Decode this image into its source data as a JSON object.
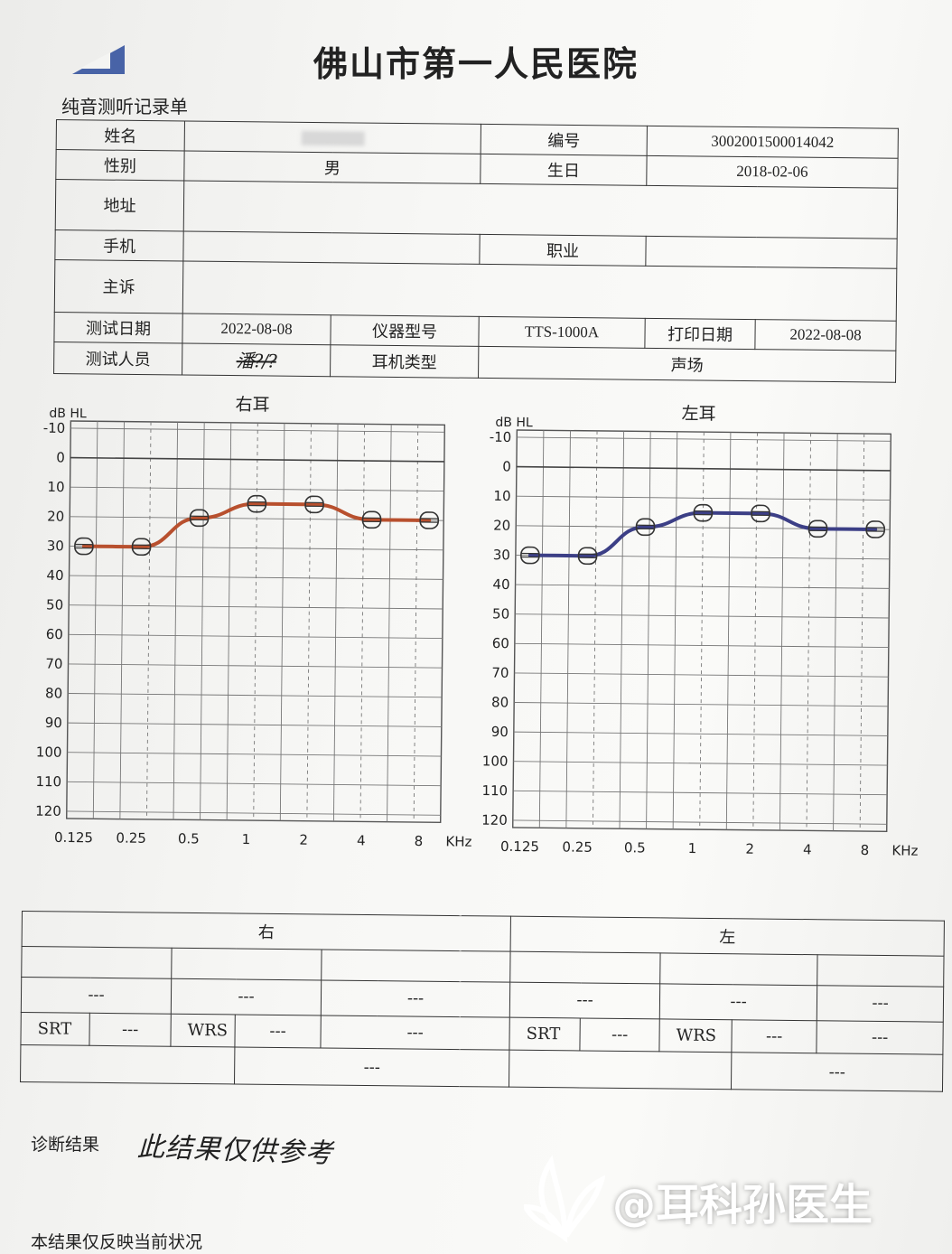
{
  "header": {
    "hospital_name": "佛山市第一人民医院",
    "form_title": "纯音测听记录单"
  },
  "patient": {
    "name_label": "姓名",
    "name_value": "",
    "id_label": "编号",
    "id_value": "3002001500014042",
    "sex_label": "性别",
    "sex_value": "男",
    "birth_label": "生日",
    "birth_value": "2018-02-06",
    "address_label": "地址",
    "address_value": "",
    "phone_label": "手机",
    "phone_value": "",
    "job_label": "职业",
    "job_value": "",
    "complaint_label": "主诉",
    "complaint_value": ""
  },
  "test": {
    "date_label": "测试日期",
    "date_value": "2022-08-08",
    "device_label": "仪器型号",
    "device_value": "TTS-1000A",
    "print_label": "打印日期",
    "print_value": "2022-08-08",
    "tester_label": "测试人员",
    "tester_value": "潘?/?",
    "earphone_label": "耳机类型",
    "earphone_value": "声场"
  },
  "chart_data": [
    {
      "type": "line",
      "title": "右耳",
      "ylabel": "dB HL",
      "xlabel": "KHz",
      "x": [
        "0.125",
        "0.25",
        "0.5",
        "1",
        "2",
        "4",
        "8"
      ],
      "y_ticks": [
        -10,
        0,
        10,
        20,
        30,
        40,
        50,
        60,
        70,
        80,
        90,
        100,
        110,
        120
      ],
      "ylim": [
        -10,
        120
      ],
      "y_inverted": true,
      "grid": true,
      "series": [
        {
          "values": [
            30,
            30,
            20,
            15,
            15,
            20,
            20
          ]
        }
      ],
      "color": "#b8502e"
    },
    {
      "type": "line",
      "title": "左耳",
      "ylabel": "dB HL",
      "xlabel": "KHz",
      "x": [
        "0.125",
        "0.25",
        "0.5",
        "1",
        "2",
        "4",
        "8"
      ],
      "y_ticks": [
        -10,
        0,
        10,
        20,
        30,
        40,
        50,
        60,
        70,
        80,
        90,
        100,
        110,
        120
      ],
      "ylim": [
        -10,
        120
      ],
      "y_inverted": true,
      "grid": true,
      "series": [
        {
          "values": [
            30,
            30,
            20,
            15,
            15,
            20,
            20
          ]
        }
      ],
      "color": "#3c3f86"
    }
  ],
  "results": {
    "right_label": "右",
    "left_label": "左",
    "srt_label": "SRT",
    "wrs_label": "WRS",
    "dash": "---"
  },
  "diagnosis": {
    "label": "诊断结果",
    "text": "此结果仅供参考"
  },
  "footnote": "本结果仅反映当前状况",
  "watermark": "@耳科孙医生"
}
